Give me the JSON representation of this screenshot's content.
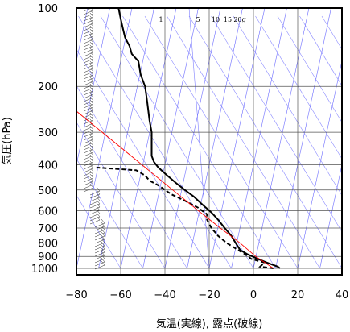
{
  "chart_data": {
    "type": "line",
    "title": "",
    "xlabel": "気温(実線), 露点(破線)",
    "ylabel": "気圧(hPa)",
    "xlim": [
      -80,
      40
    ],
    "ylim": [
      1050,
      100
    ],
    "y_scale": "log",
    "grid": true,
    "x_ticks": [
      -80,
      -60,
      -40,
      -20,
      0,
      20,
      40
    ],
    "x_tick_labels": [
      "−80",
      "−60",
      "−40",
      "−20",
      "0",
      "20",
      "40"
    ],
    "y_ticks": [
      100,
      200,
      300,
      400,
      500,
      600,
      700,
      800,
      900,
      1000
    ],
    "y_tick_labels": [
      "100",
      "200",
      "300",
      "400",
      "500",
      "600",
      "700",
      "800",
      "900",
      "1000"
    ],
    "mixing_ratio_labels": [
      "1",
      "5",
      "10",
      "15",
      "20g"
    ],
    "skew_x_per_decade": 69,
    "series": [
      {
        "style": "solid",
        "color": "#000000",
        "points": [
          [
            12,
            1000
          ],
          [
            11,
            985
          ],
          [
            6,
            950
          ],
          [
            2,
            920
          ],
          [
            -3,
            880
          ],
          [
            -6,
            850
          ],
          [
            -8,
            800
          ],
          [
            -10,
            750
          ],
          [
            -13,
            700
          ],
          [
            -16,
            650
          ],
          [
            -19,
            610
          ],
          [
            -23,
            570
          ],
          [
            -27,
            530
          ],
          [
            -31,
            500
          ],
          [
            -35,
            470
          ],
          [
            -39,
            440
          ],
          [
            -43,
            410
          ],
          [
            -45,
            390
          ],
          [
            -46,
            370
          ],
          [
            -46,
            340
          ],
          [
            -46,
            300
          ],
          [
            -47,
            270
          ],
          [
            -48,
            230
          ],
          [
            -49,
            200
          ],
          [
            -51,
            180
          ],
          [
            -52,
            160
          ],
          [
            -55,
            150
          ],
          [
            -56,
            140
          ],
          [
            -58,
            130
          ],
          [
            -59,
            120
          ],
          [
            -60,
            110
          ],
          [
            -61,
            100
          ]
        ]
      },
      {
        "style": "dashed",
        "color": "#000000",
        "points": [
          [
            9,
            1000
          ],
          [
            3,
            985
          ],
          [
            5,
            950
          ],
          [
            -1,
            920
          ],
          [
            -4,
            880
          ],
          [
            -7,
            850
          ],
          [
            -12,
            800
          ],
          [
            -16,
            750
          ],
          [
            -19,
            700
          ],
          [
            -21,
            650
          ],
          [
            -21,
            620
          ],
          [
            -25,
            585
          ],
          [
            -31,
            550
          ],
          [
            -37,
            520
          ],
          [
            -43,
            480
          ],
          [
            -47,
            460
          ],
          [
            -49,
            440
          ],
          [
            -53,
            420
          ],
          [
            -71,
            410
          ]
        ]
      },
      {
        "style": "solid",
        "color": "#ff0000",
        "points": [
          [
            9,
            1000
          ],
          [
            1,
            900
          ],
          [
            -6,
            800
          ],
          [
            -15,
            700
          ],
          [
            -25,
            600
          ],
          [
            -34,
            520
          ],
          [
            -85,
            230
          ]
        ]
      }
    ]
  }
}
